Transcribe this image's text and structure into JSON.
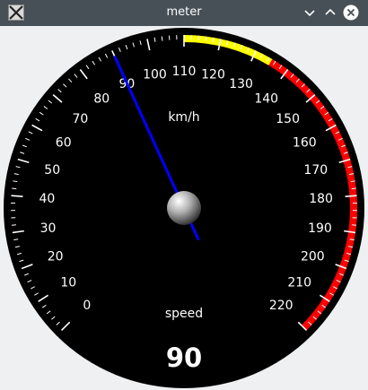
{
  "window": {
    "title": "meter",
    "icons": {
      "app": "x-app-icon",
      "minimize": "chevron-down-icon",
      "maximize": "chevron-up-icon",
      "close": "close-icon"
    }
  },
  "meter": {
    "unit_label": "km/h",
    "caption": "speed",
    "value": 90,
    "min": 0,
    "max": 220,
    "scale_labels": [
      "0",
      "10",
      "20",
      "30",
      "40",
      "50",
      "60",
      "70",
      "80",
      "90",
      "100",
      "110",
      "120",
      "130",
      "140",
      "150",
      "160",
      "170",
      "180",
      "190",
      "200",
      "210",
      "220"
    ],
    "warning_range": [
      110,
      135
    ],
    "danger_range": [
      135,
      220
    ],
    "colors": {
      "dial": "#000000",
      "ticks": "#ffffff",
      "warning": "#ffff00",
      "danger": "#ff0000",
      "needle": "#0000ff"
    }
  }
}
